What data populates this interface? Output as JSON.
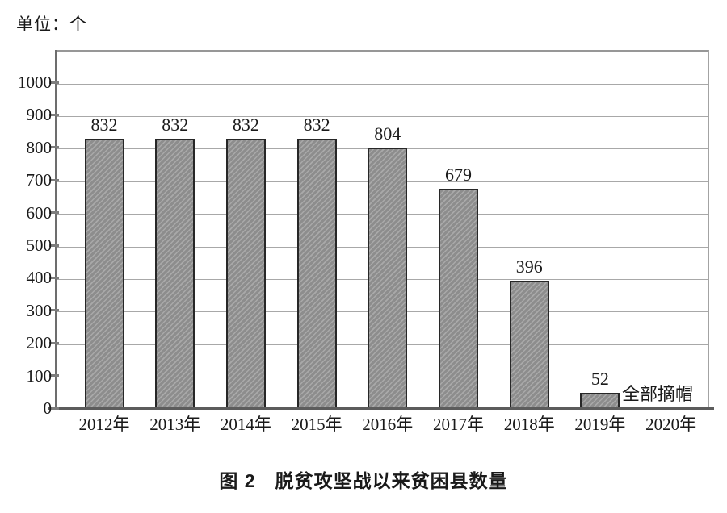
{
  "unit_label": "单位：个",
  "caption": "图 2　脱贫攻坚战以来贫困县数量",
  "chart_data": {
    "type": "bar",
    "title": "图 2　脱贫攻坚战以来贫困县数量",
    "unit_label": "单位：个",
    "categories": [
      "2012年",
      "2013年",
      "2014年",
      "2015年",
      "2016年",
      "2017年",
      "2018年",
      "2019年",
      "2020年"
    ],
    "values": [
      832,
      832,
      832,
      832,
      804,
      679,
      396,
      52,
      null
    ],
    "bar_labels": [
      "832",
      "832",
      "832",
      "832",
      "804",
      "679",
      "396",
      "52",
      ""
    ],
    "annotation": {
      "text": "全部摘帽",
      "category": "2020年",
      "y": 0
    },
    "xlabel": "",
    "ylabel": "单位：个",
    "ylim": [
      0,
      1000
    ],
    "y_ticks": [
      0,
      100,
      200,
      300,
      400,
      500,
      600,
      700,
      800,
      900,
      1000
    ],
    "grid": true,
    "legend": "none",
    "bar_style": {
      "fill": "#8d8d8d",
      "hatch": "/",
      "hatch_color": "#a9a9a9",
      "border": "#272727"
    }
  }
}
